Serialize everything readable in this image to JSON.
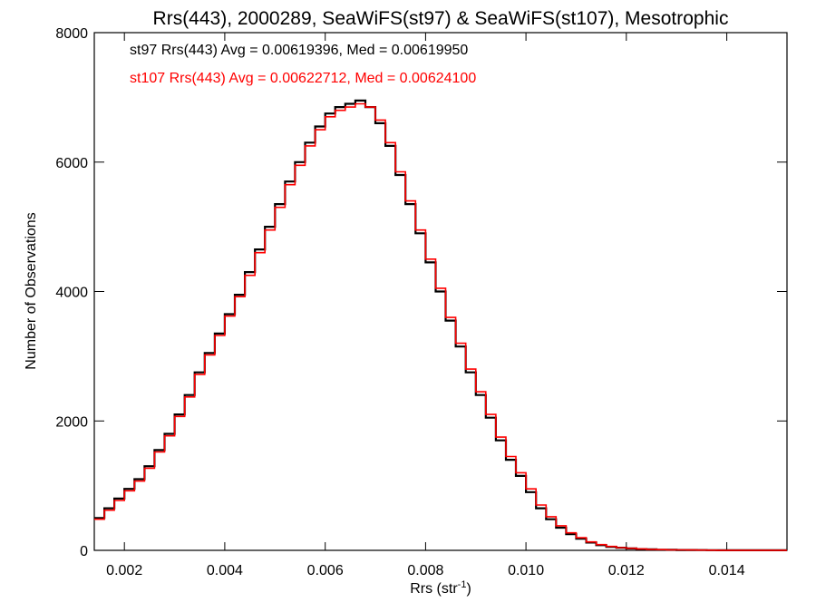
{
  "chart_data": {
    "type": "line",
    "step": true,
    "title": "Rrs(443), 2000289, SeaWiFS(st97) & SeaWiFS(st107), Mesotrophic",
    "xlabel_main": "Rrs (str",
    "xlabel_sup": "-1",
    "xlabel_close": ")",
    "ylabel": "Number of Observations",
    "xlim": [
      0.0014,
      0.0152
    ],
    "ylim": [
      0,
      8000
    ],
    "xticks": [
      0.002,
      0.004,
      0.006,
      0.008,
      0.01,
      0.012,
      0.014
    ],
    "xtick_labels": [
      "0.002",
      "0.004",
      "0.006",
      "0.008",
      "0.010",
      "0.012",
      "0.014"
    ],
    "yticks": [
      0,
      2000,
      4000,
      6000,
      8000
    ],
    "ytick_labels": [
      "0",
      "2000",
      "4000",
      "6000",
      "8000"
    ],
    "grid": false,
    "series": [
      {
        "name": "st97",
        "color": "#000000",
        "annotation": "st97 Rrs(443) Avg = 0.00619396, Med = 0.00619950",
        "x": [
          0.0014,
          0.0016,
          0.0018,
          0.002,
          0.0022,
          0.0024,
          0.0026,
          0.0028,
          0.003,
          0.0032,
          0.0034,
          0.0036,
          0.0038,
          0.004,
          0.0042,
          0.0044,
          0.0046,
          0.0048,
          0.005,
          0.0052,
          0.0054,
          0.0056,
          0.0058,
          0.006,
          0.0062,
          0.0064,
          0.0066,
          0.0068,
          0.007,
          0.0072,
          0.0074,
          0.0076,
          0.0078,
          0.008,
          0.0082,
          0.0084,
          0.0086,
          0.0088,
          0.009,
          0.0092,
          0.0094,
          0.0096,
          0.0098,
          0.01,
          0.0102,
          0.0104,
          0.0106,
          0.0108,
          0.011,
          0.0112,
          0.0114,
          0.0116,
          0.0118,
          0.012,
          0.0122,
          0.0124,
          0.0126,
          0.0128,
          0.013,
          0.0132,
          0.0134,
          0.0136,
          0.0138,
          0.014,
          0.0142,
          0.0144,
          0.0146,
          0.0148,
          0.015,
          0.0152
        ],
        "values": [
          500,
          650,
          800,
          950,
          1100,
          1300,
          1550,
          1800,
          2100,
          2400,
          2750,
          3050,
          3350,
          3650,
          3950,
          4300,
          4650,
          5000,
          5350,
          5700,
          6000,
          6300,
          6550,
          6750,
          6850,
          6900,
          6950,
          6850,
          6600,
          6250,
          5800,
          5350,
          4900,
          4450,
          4000,
          3550,
          3150,
          2750,
          2400,
          2050,
          1700,
          1400,
          1150,
          900,
          650,
          480,
          350,
          250,
          180,
          120,
          80,
          55,
          40,
          30,
          20,
          15,
          10,
          8,
          6,
          5,
          4,
          3,
          2,
          2,
          1,
          1,
          1,
          1,
          1,
          1
        ]
      },
      {
        "name": "st107",
        "color": "#ff0000",
        "annotation": "st107 Rrs(443) Avg = 0.00622712, Med = 0.00624100",
        "x": [
          0.0014,
          0.0016,
          0.0018,
          0.002,
          0.0022,
          0.0024,
          0.0026,
          0.0028,
          0.003,
          0.0032,
          0.0034,
          0.0036,
          0.0038,
          0.004,
          0.0042,
          0.0044,
          0.0046,
          0.0048,
          0.005,
          0.0052,
          0.0054,
          0.0056,
          0.0058,
          0.006,
          0.0062,
          0.0064,
          0.0066,
          0.0068,
          0.007,
          0.0072,
          0.0074,
          0.0076,
          0.0078,
          0.008,
          0.0082,
          0.0084,
          0.0086,
          0.0088,
          0.009,
          0.0092,
          0.0094,
          0.0096,
          0.0098,
          0.01,
          0.0102,
          0.0104,
          0.0106,
          0.0108,
          0.011,
          0.0112,
          0.0114,
          0.0116,
          0.0118,
          0.012,
          0.0122,
          0.0124,
          0.0126,
          0.0128,
          0.013,
          0.0132,
          0.0134,
          0.0136,
          0.0138,
          0.014,
          0.0142,
          0.0144,
          0.0146,
          0.0148,
          0.015,
          0.0152
        ],
        "values": [
          480,
          620,
          770,
          920,
          1070,
          1270,
          1520,
          1770,
          2070,
          2370,
          2720,
          3020,
          3320,
          3620,
          3920,
          4250,
          4600,
          4950,
          5300,
          5650,
          5950,
          6250,
          6500,
          6700,
          6800,
          6850,
          6900,
          6850,
          6650,
          6300,
          5850,
          5400,
          4950,
          4500,
          4050,
          3600,
          3200,
          2800,
          2450,
          2100,
          1750,
          1450,
          1200,
          950,
          700,
          520,
          380,
          270,
          195,
          130,
          88,
          60,
          42,
          32,
          22,
          16,
          11,
          9,
          7,
          5,
          4,
          3,
          2,
          2,
          1,
          1,
          1,
          1,
          1,
          1
        ]
      }
    ]
  }
}
